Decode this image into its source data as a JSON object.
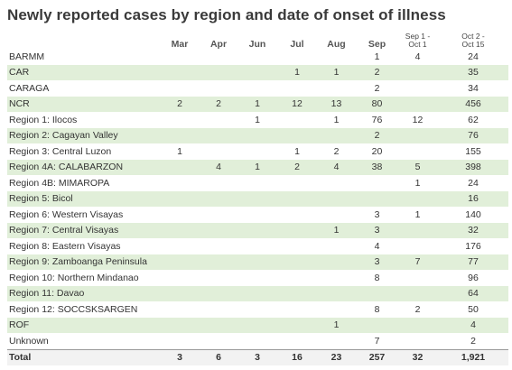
{
  "title": "Newly reported cases by region and date of onset of illness",
  "columns": [
    "",
    "Mar",
    "Apr",
    "Jun",
    "Jul",
    "Aug",
    "Sep",
    "Sep 1 -\nOct 1",
    "Oct 2 -\nOct 15"
  ],
  "column_lines": [
    [
      ""
    ],
    [
      "Mar"
    ],
    [
      "Apr"
    ],
    [
      "Jun"
    ],
    [
      "Jul"
    ],
    [
      "Aug"
    ],
    [
      "Sep"
    ],
    [
      "Sep 1 -",
      "Oct 1"
    ],
    [
      "Oct 2 -",
      "Oct 15"
    ]
  ],
  "rows": [
    {
      "region": "BARMM",
      "values": [
        "",
        "",
        "",
        "",
        "",
        "1",
        "4",
        "24"
      ],
      "shaded": false
    },
    {
      "region": "CAR",
      "values": [
        "",
        "",
        "",
        "1",
        "1",
        "2",
        "",
        "35"
      ],
      "shaded": true
    },
    {
      "region": "CARAGA",
      "values": [
        "",
        "",
        "",
        "",
        "",
        "2",
        "",
        "34"
      ],
      "shaded": false
    },
    {
      "region": "NCR",
      "values": [
        "2",
        "2",
        "1",
        "12",
        "13",
        "80",
        "",
        "456"
      ],
      "shaded": true
    },
    {
      "region": "Region 1: Ilocos",
      "values": [
        "",
        "",
        "1",
        "",
        "1",
        "76",
        "12",
        "62"
      ],
      "shaded": false
    },
    {
      "region": "Region 2: Cagayan Valley",
      "values": [
        "",
        "",
        "",
        "",
        "",
        "2",
        "",
        "76"
      ],
      "shaded": true
    },
    {
      "region": "Region 3: Central Luzon",
      "values": [
        "1",
        "",
        "",
        "1",
        "2",
        "20",
        "",
        "155"
      ],
      "shaded": false
    },
    {
      "region": "Region 4A: CALABARZON",
      "values": [
        "",
        "4",
        "1",
        "2",
        "4",
        "38",
        "5",
        "398"
      ],
      "shaded": true
    },
    {
      "region": "Region 4B: MIMAROPA",
      "values": [
        "",
        "",
        "",
        "",
        "",
        "",
        "1",
        "24"
      ],
      "shaded": false
    },
    {
      "region": "Region 5: Bicol",
      "values": [
        "",
        "",
        "",
        "",
        "",
        "",
        "",
        "16"
      ],
      "shaded": true
    },
    {
      "region": "Region 6: Western Visayas",
      "values": [
        "",
        "",
        "",
        "",
        "",
        "3",
        "1",
        "140"
      ],
      "shaded": false
    },
    {
      "region": "Region 7: Central Visayas",
      "values": [
        "",
        "",
        "",
        "",
        "1",
        "3",
        "",
        "32"
      ],
      "shaded": true
    },
    {
      "region": "Region 8: Eastern Visayas",
      "values": [
        "",
        "",
        "",
        "",
        "",
        "4",
        "",
        "176"
      ],
      "shaded": false
    },
    {
      "region": "Region 9: Zamboanga Peninsula",
      "values": [
        "",
        "",
        "",
        "",
        "",
        "3",
        "7",
        "77"
      ],
      "shaded": true
    },
    {
      "region": "Region 10: Northern Mindanao",
      "values": [
        "",
        "",
        "",
        "",
        "",
        "8",
        "",
        "96"
      ],
      "shaded": false
    },
    {
      "region": "Region 11: Davao",
      "values": [
        "",
        "",
        "",
        "",
        "",
        "",
        "",
        "64"
      ],
      "shaded": true
    },
    {
      "region": "Region 12: SOCCSKSARGEN",
      "values": [
        "",
        "",
        "",
        "",
        "",
        "8",
        "2",
        "50"
      ],
      "shaded": false
    },
    {
      "region": "ROF",
      "values": [
        "",
        "",
        "",
        "",
        "1",
        "",
        "",
        "4"
      ],
      "shaded": true
    },
    {
      "region": "Unknown",
      "values": [
        "",
        "",
        "",
        "",
        "",
        "7",
        "",
        "2"
      ],
      "shaded": false
    }
  ],
  "total": {
    "label": "Total",
    "values": [
      "3",
      "6",
      "3",
      "16",
      "23",
      "257",
      "32",
      "1,921"
    ]
  },
  "colors": {
    "row_shade": "#e1efd9",
    "total_bg": "#f2f2f2"
  }
}
